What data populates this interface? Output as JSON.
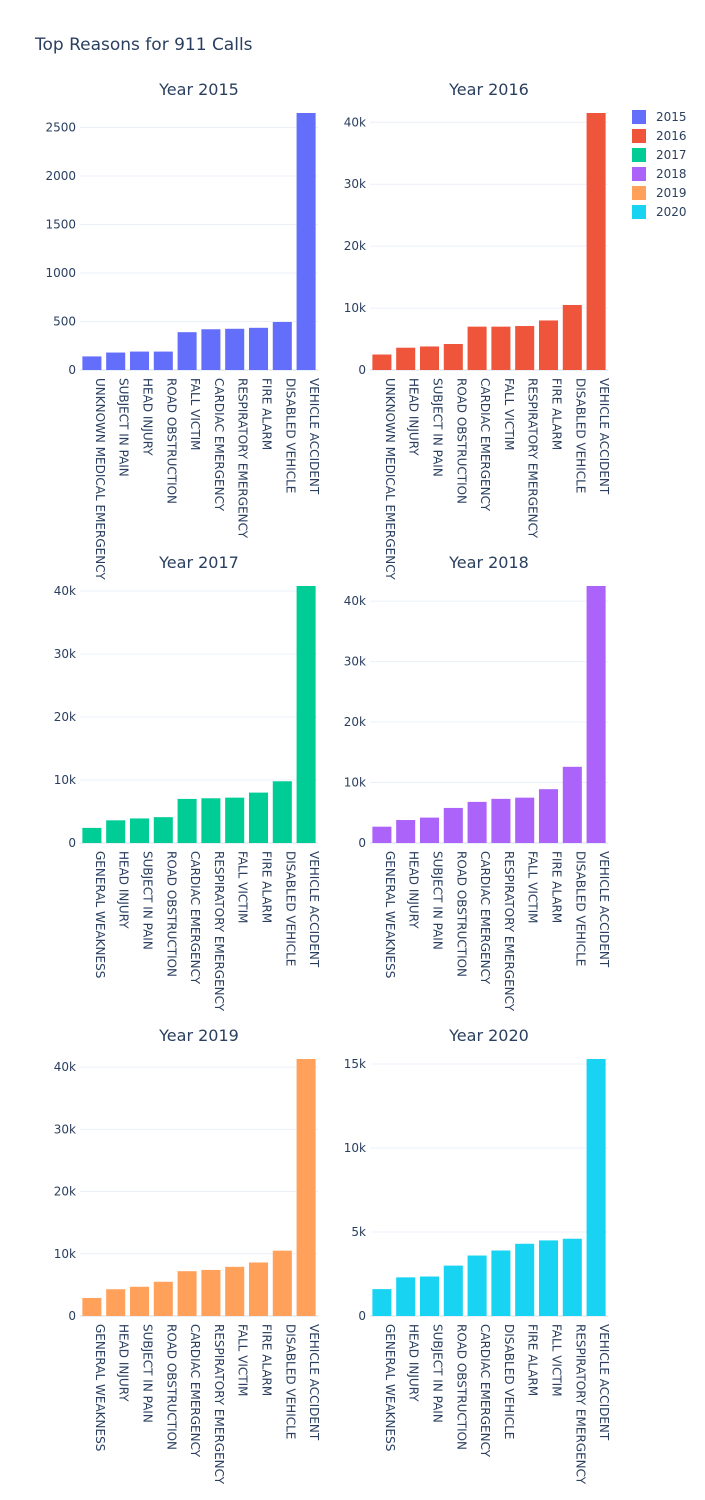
{
  "chart_data": {
    "type": "bar",
    "title": "Top Reasons for 911 Calls",
    "legend": {
      "placement": "top-right",
      "entries": [
        {
          "name": "2015",
          "color": "#636efa"
        },
        {
          "name": "2016",
          "color": "#ef553b"
        },
        {
          "name": "2017",
          "color": "#00cc96"
        },
        {
          "name": "2018",
          "color": "#ab63fa"
        },
        {
          "name": "2019",
          "color": "#ffa15a"
        },
        {
          "name": "2020",
          "color": "#19d3f3"
        }
      ]
    },
    "subplots": [
      {
        "title": "Year 2015",
        "series_name": "2015",
        "color": "#636efa",
        "categories": [
          "UNKNOWN MEDICAL EMERGENCY",
          "SUBJECT IN PAIN",
          "HEAD INJURY",
          "ROAD OBSTRUCTION",
          "FALL VICTIM",
          "CARDIAC EMERGENCY",
          "RESPIRATORY EMERGENCY",
          "FIRE ALARM",
          "DISABLED VEHICLE",
          "VEHICLE ACCIDENT"
        ],
        "values": [
          140,
          180,
          190,
          190,
          390,
          420,
          425,
          435,
          495,
          2650
        ],
        "ylim": [
          0,
          2650
        ],
        "yticks": [
          0,
          500,
          1000,
          1500,
          2000,
          2500
        ],
        "yticklabels": [
          "0",
          "500",
          "1000",
          "1500",
          "2000",
          "2500"
        ]
      },
      {
        "title": "Year 2016",
        "series_name": "2016",
        "color": "#ef553b",
        "categories": [
          "UNKNOWN MEDICAL EMERGENCY",
          "HEAD INJURY",
          "SUBJECT IN PAIN",
          "ROAD OBSTRUCTION",
          "CARDIAC EMERGENCY",
          "FALL VICTIM",
          "RESPIRATORY EMERGENCY",
          "FIRE ALARM",
          "DISABLED VEHICLE",
          "VEHICLE ACCIDENT"
        ],
        "values": [
          2500,
          3600,
          3800,
          4200,
          7000,
          7000,
          7100,
          8000,
          10500,
          41500
        ],
        "ylim": [
          0,
          41500
        ],
        "yticks": [
          0,
          10000,
          20000,
          30000,
          40000
        ],
        "yticklabels": [
          "0",
          "10k",
          "20k",
          "30k",
          "40k"
        ]
      },
      {
        "title": "Year 2017",
        "series_name": "2017",
        "color": "#00cc96",
        "categories": [
          "GENERAL WEAKNESS",
          "HEAD INJURY",
          "SUBJECT IN PAIN",
          "ROAD OBSTRUCTION",
          "CARDIAC EMERGENCY",
          "RESPIRATORY EMERGENCY",
          "FALL VICTIM",
          "FIRE ALARM",
          "DISABLED VEHICLE",
          "VEHICLE ACCIDENT"
        ],
        "values": [
          2400,
          3600,
          3900,
          4100,
          7000,
          7100,
          7200,
          8000,
          9800,
          40800
        ],
        "ylim": [
          0,
          40800
        ],
        "yticks": [
          0,
          10000,
          20000,
          30000,
          40000
        ],
        "yticklabels": [
          "0",
          "10k",
          "20k",
          "30k",
          "40k"
        ]
      },
      {
        "title": "Year 2018",
        "series_name": "2018",
        "color": "#ab63fa",
        "categories": [
          "GENERAL WEAKNESS",
          "HEAD INJURY",
          "SUBJECT IN PAIN",
          "ROAD OBSTRUCTION",
          "CARDIAC EMERGENCY",
          "RESPIRATORY EMERGENCY",
          "FALL VICTIM",
          "FIRE ALARM",
          "DISABLED VEHICLE",
          "VEHICLE ACCIDENT"
        ],
        "values": [
          2700,
          3800,
          4200,
          5800,
          6800,
          7300,
          7500,
          8900,
          12600,
          42500
        ],
        "ylim": [
          0,
          42500
        ],
        "yticks": [
          0,
          10000,
          20000,
          30000,
          40000
        ],
        "yticklabels": [
          "0",
          "10k",
          "20k",
          "30k",
          "40k"
        ]
      },
      {
        "title": "Year 2019",
        "series_name": "2019",
        "color": "#ffa15a",
        "categories": [
          "GENERAL WEAKNESS",
          "HEAD INJURY",
          "SUBJECT IN PAIN",
          "ROAD OBSTRUCTION",
          "CARDIAC EMERGENCY",
          "RESPIRATORY EMERGENCY",
          "FALL VICTIM",
          "FIRE ALARM",
          "DISABLED VEHICLE",
          "VEHICLE ACCIDENT"
        ],
        "values": [
          2900,
          4300,
          4700,
          5500,
          7200,
          7400,
          7900,
          8600,
          10500,
          41300
        ],
        "ylim": [
          0,
          41300
        ],
        "yticks": [
          0,
          10000,
          20000,
          30000,
          40000
        ],
        "yticklabels": [
          "0",
          "10k",
          "20k",
          "30k",
          "40k"
        ]
      },
      {
        "title": "Year 2020",
        "series_name": "2020",
        "color": "#19d3f3",
        "categories": [
          "GENERAL WEAKNESS",
          "HEAD INJURY",
          "SUBJECT IN PAIN",
          "ROAD OBSTRUCTION",
          "CARDIAC EMERGENCY",
          "DISABLED VEHICLE",
          "FIRE ALARM",
          "FALL VICTIM",
          "RESPIRATORY EMERGENCY",
          "VEHICLE ACCIDENT"
        ],
        "values": [
          1600,
          2300,
          2350,
          3000,
          3600,
          3900,
          4300,
          4500,
          4600,
          15300
        ],
        "ylim": [
          0,
          15300
        ],
        "yticks": [
          0,
          5000,
          10000,
          15000
        ],
        "yticklabels": [
          "0",
          "5k",
          "10k",
          "15k"
        ]
      }
    ]
  }
}
